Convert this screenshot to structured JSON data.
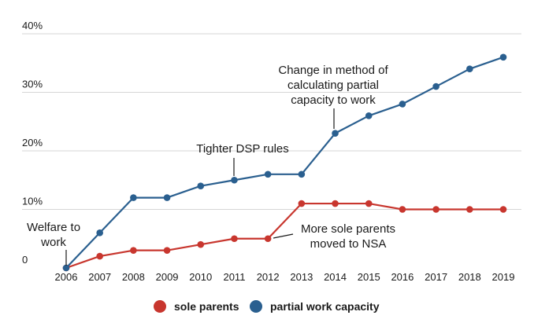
{
  "chart_data": {
    "type": "line",
    "x": [
      2006,
      2007,
      2008,
      2009,
      2010,
      2011,
      2012,
      2013,
      2014,
      2015,
      2016,
      2017,
      2018,
      2019
    ],
    "xtick_labels": [
      "2006",
      "2007",
      "2008",
      "2009",
      "2010",
      "2011",
      "2012",
      "2013",
      "2014",
      "2015",
      "2016",
      "2017",
      "2018",
      "2019"
    ],
    "ylim": [
      0,
      40
    ],
    "yticks": [
      0,
      10,
      20,
      30,
      40
    ],
    "ytick_labels": [
      "0",
      "10%",
      "20%",
      "30%",
      "40%"
    ],
    "grid": true,
    "legend_position": "bottom",
    "series": [
      {
        "name": "sole parents",
        "color": "#c8362e",
        "values": [
          0,
          2,
          3,
          3,
          4,
          5,
          5,
          11,
          11,
          11,
          10,
          10,
          10,
          10
        ]
      },
      {
        "name": "partial work capacity",
        "color": "#2a5f8f",
        "values": [
          0,
          6,
          12,
          12,
          14,
          15,
          16,
          16,
          23,
          26,
          28,
          31,
          34,
          36
        ]
      }
    ],
    "annotations": [
      {
        "id": "welfare",
        "lines": [
          "Welfare to",
          "work"
        ],
        "x": 2006,
        "y": 0
      },
      {
        "id": "dsp",
        "lines": [
          "Tighter DSP rules"
        ],
        "x": 2011,
        "y": 15
      },
      {
        "id": "method",
        "lines": [
          "Change in method of",
          "calculating partial",
          "capacity to work"
        ],
        "x": 2014,
        "y": 23
      },
      {
        "id": "nsa",
        "lines": [
          "More sole parents",
          "moved to NSA"
        ],
        "x": 2012,
        "y": 5
      }
    ]
  }
}
